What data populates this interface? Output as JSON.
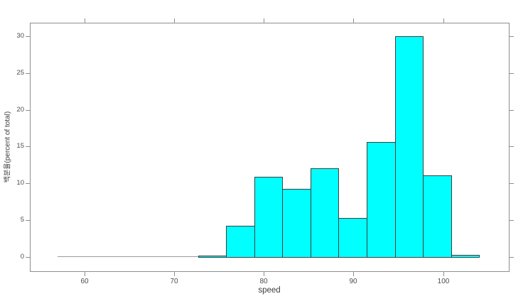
{
  "figure": {
    "background": "#ffffff"
  },
  "chart_data": {
    "type": "bar",
    "subtype": "histogram",
    "title": "",
    "xlabel": "speed",
    "ylabel": "백분율(percent of total)",
    "n_bins": 15,
    "bin_edges": [
      57.0,
      60.133,
      63.267,
      66.4,
      69.533,
      72.667,
      75.8,
      78.933,
      82.067,
      85.2,
      88.333,
      91.467,
      94.6,
      97.733,
      100.867,
      104.0
    ],
    "percent_values": [
      0,
      0,
      0,
      0,
      0,
      0.2,
      4.3,
      10.9,
      9.3,
      12.1,
      5.3,
      15.6,
      30.0,
      11.1,
      0.3
    ],
    "x_ticks": [
      60,
      70,
      80,
      90,
      100
    ],
    "y_ticks": [
      0,
      5,
      10,
      15,
      20,
      25,
      30
    ],
    "xlim": [
      53.9,
      107.4
    ],
    "ylim": [
      -2.0,
      31.8
    ],
    "grid": "off",
    "legend": "none",
    "bar_fill": "#00ffff",
    "bar_border": "#3f3f3f",
    "axis_color": "#8e8e8e",
    "label_color": "#4d4d4d",
    "zero_line_color": "#999999"
  }
}
